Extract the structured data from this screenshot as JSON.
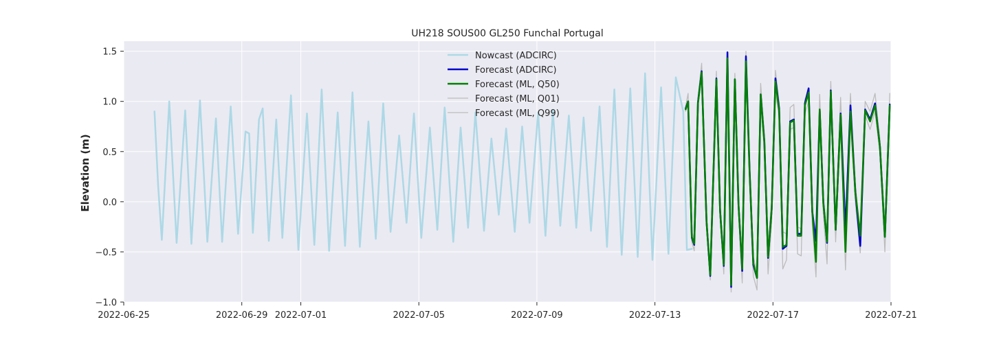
{
  "chart_data": {
    "type": "line",
    "title": "UH218 SOUS00 GL250 Funchal Portugal",
    "xlabel": "",
    "ylabel": "Elevation (m)",
    "xlim": [
      "2022-06-25T00:00",
      "2022-07-21T00:00"
    ],
    "ylim": [
      -1.0,
      1.6
    ],
    "grid": true,
    "legend_position": "top-center",
    "x_ticks": [
      "2022-06-25",
      "2022-06-29",
      "2022-07-01",
      "2022-07-05",
      "2022-07-09",
      "2022-07-13",
      "2022-07-17",
      "2022-07-21"
    ],
    "y_ticks": [
      -1.0,
      -0.5,
      0.0,
      0.5,
      1.0,
      1.5
    ],
    "y_tick_labels": [
      "−1.0",
      "−0.5",
      "0.0",
      "0.5",
      "1.0",
      "1.5"
    ],
    "series": [
      {
        "name": "Nowcast (ADCIRC)",
        "color": "#add8e6",
        "x": [
          "2022-06-26T01:00",
          "2022-06-26T04:00",
          "2022-06-26T07:00",
          "2022-06-26T13:00",
          "2022-06-26T19:00",
          "2022-06-27T02:00",
          "2022-06-27T07:00",
          "2022-06-27T14:00",
          "2022-06-27T20:00",
          "2022-06-28T03:00",
          "2022-06-28T08:00",
          "2022-06-28T15:00",
          "2022-06-28T21:00",
          "2022-06-29T03:00",
          "2022-06-29T06:00",
          "2022-06-29T09:00",
          "2022-06-29T14:00",
          "2022-06-29T17:00",
          "2022-06-29T22:00",
          "2022-06-30T04:00",
          "2022-06-30T09:00",
          "2022-06-30T16:00",
          "2022-06-30T22:00",
          "2022-07-01T05:00",
          "2022-07-01T11:00",
          "2022-07-01T17:00",
          "2022-07-01T23:00",
          "2022-07-02T06:00",
          "2022-07-02T12:00",
          "2022-07-02T18:00",
          "2022-07-03T00:00",
          "2022-07-03T07:00",
          "2022-07-03T13:00",
          "2022-07-03T19:00",
          "2022-07-04T01:00",
          "2022-07-04T08:00",
          "2022-07-04T14:00",
          "2022-07-04T20:00",
          "2022-07-05T02:00",
          "2022-07-05T09:00",
          "2022-07-05T15:00",
          "2022-07-05T21:00",
          "2022-07-06T04:00",
          "2022-07-06T10:00",
          "2022-07-06T16:00",
          "2022-07-06T22:00",
          "2022-07-07T05:00",
          "2022-07-07T11:00",
          "2022-07-07T17:00",
          "2022-07-07T23:00",
          "2022-07-08T06:00",
          "2022-07-08T12:00",
          "2022-07-08T18:00",
          "2022-07-09T01:00",
          "2022-07-09T07:00",
          "2022-07-09T13:00",
          "2022-07-09T19:00",
          "2022-07-10T02:00",
          "2022-07-10T08:00",
          "2022-07-10T14:00",
          "2022-07-10T20:00",
          "2022-07-11T03:00",
          "2022-07-11T09:00",
          "2022-07-11T15:00",
          "2022-07-11T21:00",
          "2022-07-12T04:00",
          "2022-07-12T10:00",
          "2022-07-12T16:00",
          "2022-07-12T22:00",
          "2022-07-13T05:00",
          "2022-07-13T11:00",
          "2022-07-13T17:00",
          "2022-07-13T23:00",
          "2022-07-14T02:00",
          "2022-07-14T06:00"
        ],
        "values": [
          0.9,
          0.15,
          -0.38,
          1.0,
          -0.41,
          0.91,
          -0.42,
          1.01,
          -0.4,
          0.83,
          -0.4,
          0.95,
          -0.32,
          0.7,
          0.68,
          -0.31,
          0.82,
          0.93,
          -0.39,
          0.82,
          -0.36,
          1.06,
          -0.48,
          0.88,
          -0.43,
          1.12,
          -0.49,
          0.89,
          -0.44,
          1.09,
          -0.45,
          0.8,
          -0.37,
          0.98,
          -0.3,
          0.66,
          -0.21,
          0.88,
          -0.36,
          0.74,
          -0.28,
          0.94,
          -0.4,
          0.74,
          -0.26,
          0.89,
          -0.29,
          0.63,
          -0.13,
          0.73,
          -0.3,
          0.75,
          -0.21,
          0.89,
          -0.34,
          0.91,
          -0.24,
          0.86,
          -0.26,
          0.84,
          -0.29,
          0.95,
          -0.45,
          1.12,
          -0.53,
          1.13,
          -0.55,
          1.28,
          -0.58,
          1.14,
          -0.52,
          1.24,
          0.9,
          -0.48,
          -0.47
        ]
      },
      {
        "name": "Forecast (ADCIRC)",
        "color": "#0000cd",
        "x": [
          "2022-07-14T01:00",
          "2022-07-14T03:00",
          "2022-07-14T06:00",
          "2022-07-14T08:00",
          "2022-07-14T11:00",
          "2022-07-14T14:00",
          "2022-07-14T18:00",
          "2022-07-14T21:00",
          "2022-07-15T02:00",
          "2022-07-15T05:00",
          "2022-07-15T08:00",
          "2022-07-15T11:00",
          "2022-07-15T14:00",
          "2022-07-15T17:00",
          "2022-07-15T20:00",
          "2022-07-15T23:00",
          "2022-07-16T02:00",
          "2022-07-16T05:00",
          "2022-07-16T08:00",
          "2022-07-16T11:00",
          "2022-07-16T14:00",
          "2022-07-16T17:00",
          "2022-07-16T20:00",
          "2022-07-16T23:00",
          "2022-07-17T02:00",
          "2022-07-17T05:00",
          "2022-07-17T08:00",
          "2022-07-17T11:00",
          "2022-07-17T14:00",
          "2022-07-17T17:00",
          "2022-07-17T20:00",
          "2022-07-17T23:00",
          "2022-07-18T02:00",
          "2022-07-18T05:00",
          "2022-07-18T08:00",
          "2022-07-18T11:00",
          "2022-07-18T14:00",
          "2022-07-18T17:00",
          "2022-07-18T20:00",
          "2022-07-18T23:00",
          "2022-07-19T03:00",
          "2022-07-19T07:00",
          "2022-07-19T11:00",
          "2022-07-19T15:00",
          "2022-07-19T19:00",
          "2022-07-19T23:00",
          "2022-07-20T03:00",
          "2022-07-20T07:00",
          "2022-07-20T11:00",
          "2022-07-20T15:00",
          "2022-07-20T19:00",
          "2022-07-20T23:00"
        ],
        "values": [
          0.93,
          1.0,
          -0.36,
          -0.43,
          0.99,
          1.3,
          -0.2,
          -0.74,
          1.23,
          -0.09,
          -0.64,
          1.49,
          -0.85,
          1.22,
          -0.03,
          -0.69,
          1.45,
          0.32,
          -0.63,
          -0.76,
          1.07,
          0.6,
          -0.56,
          -0.07,
          1.23,
          0.93,
          -0.47,
          -0.44,
          0.8,
          0.82,
          -0.32,
          -0.32,
          0.98,
          1.13,
          -0.1,
          -0.39,
          0.91,
          -0.01,
          -0.41,
          1.11,
          -0.28,
          0.88,
          -0.29,
          0.96,
          0.1,
          -0.44,
          0.92,
          0.82,
          0.98,
          0.55,
          -0.35,
          0.97
        ]
      },
      {
        "name": "Forecast (ML, Q50)",
        "color": "#008000",
        "x": [
          "2022-07-14T01:00",
          "2022-07-14T03:00",
          "2022-07-14T06:00",
          "2022-07-14T08:00",
          "2022-07-14T11:00",
          "2022-07-14T14:00",
          "2022-07-14T18:00",
          "2022-07-14T21:00",
          "2022-07-15T02:00",
          "2022-07-15T05:00",
          "2022-07-15T08:00",
          "2022-07-15T11:00",
          "2022-07-15T14:00",
          "2022-07-15T17:00",
          "2022-07-15T20:00",
          "2022-07-15T23:00",
          "2022-07-16T02:00",
          "2022-07-16T05:00",
          "2022-07-16T08:00",
          "2022-07-16T11:00",
          "2022-07-16T14:00",
          "2022-07-16T17:00",
          "2022-07-16T20:00",
          "2022-07-16T23:00",
          "2022-07-17T02:00",
          "2022-07-17T05:00",
          "2022-07-17T08:00",
          "2022-07-17T11:00",
          "2022-07-17T14:00",
          "2022-07-17T17:00",
          "2022-07-17T20:00",
          "2022-07-17T23:00",
          "2022-07-18T02:00",
          "2022-07-18T05:00",
          "2022-07-18T08:00",
          "2022-07-18T11:00",
          "2022-07-18T14:00",
          "2022-07-18T17:00",
          "2022-07-18T20:00",
          "2022-07-18T23:00",
          "2022-07-19T03:00",
          "2022-07-19T07:00",
          "2022-07-19T11:00",
          "2022-07-19T15:00",
          "2022-07-19T19:00",
          "2022-07-19T23:00",
          "2022-07-20T03:00",
          "2022-07-20T07:00",
          "2022-07-20T11:00",
          "2022-07-20T15:00",
          "2022-07-20T19:00",
          "2022-07-20T23:00"
        ],
        "values": [
          0.92,
          1.0,
          -0.35,
          -0.42,
          0.98,
          1.29,
          -0.2,
          -0.73,
          1.22,
          -0.09,
          -0.63,
          1.43,
          -0.83,
          1.22,
          -0.03,
          -0.67,
          1.4,
          0.3,
          -0.61,
          -0.76,
          1.07,
          0.59,
          -0.55,
          -0.07,
          1.2,
          0.91,
          -0.45,
          -0.43,
          0.79,
          0.81,
          -0.34,
          -0.34,
          0.96,
          1.09,
          -0.1,
          -0.6,
          0.92,
          -0.02,
          -0.4,
          1.1,
          -0.28,
          0.87,
          -0.5,
          0.9,
          0.1,
          -0.34,
          0.91,
          0.8,
          0.96,
          0.55,
          -0.35,
          0.96
        ]
      },
      {
        "name": "Forecast (ML, Q01)",
        "color": "#bcbcbc",
        "x": [
          "2022-07-14T01:00",
          "2022-07-14T03:00",
          "2022-07-14T06:00",
          "2022-07-14T08:00",
          "2022-07-14T11:00",
          "2022-07-14T14:00",
          "2022-07-14T18:00",
          "2022-07-14T21:00",
          "2022-07-15T02:00",
          "2022-07-15T05:00",
          "2022-07-15T08:00",
          "2022-07-15T11:00",
          "2022-07-15T14:00",
          "2022-07-15T17:00",
          "2022-07-15T20:00",
          "2022-07-15T23:00",
          "2022-07-16T02:00",
          "2022-07-16T05:00",
          "2022-07-16T08:00",
          "2022-07-16T11:00",
          "2022-07-16T14:00",
          "2022-07-16T17:00",
          "2022-07-16T20:00",
          "2022-07-16T23:00",
          "2022-07-17T02:00",
          "2022-07-17T05:00",
          "2022-07-17T08:00",
          "2022-07-17T11:00",
          "2022-07-17T14:00",
          "2022-07-17T17:00",
          "2022-07-17T20:00",
          "2022-07-17T23:00",
          "2022-07-18T02:00",
          "2022-07-18T05:00",
          "2022-07-18T08:00",
          "2022-07-18T11:00",
          "2022-07-18T14:00",
          "2022-07-18T17:00",
          "2022-07-18T20:00",
          "2022-07-18T23:00",
          "2022-07-19T03:00",
          "2022-07-19T07:00",
          "2022-07-19T11:00",
          "2022-07-19T15:00",
          "2022-07-19T19:00",
          "2022-07-19T23:00",
          "2022-07-20T03:00",
          "2022-07-20T07:00",
          "2022-07-20T11:00",
          "2022-07-20T15:00",
          "2022-07-20T19:00",
          "2022-07-20T23:00"
        ],
        "values": [
          0.9,
          0.98,
          -0.4,
          -0.49,
          0.95,
          1.25,
          -0.26,
          -0.78,
          1.18,
          -0.15,
          -0.72,
          1.36,
          -0.9,
          1.16,
          -0.1,
          -0.81,
          1.35,
          0.22,
          -0.74,
          -0.88,
          1.0,
          0.5,
          -0.72,
          -0.18,
          1.1,
          0.85,
          -0.67,
          -0.58,
          0.72,
          0.74,
          -0.52,
          -0.54,
          0.88,
          1.0,
          -0.22,
          -0.75,
          0.85,
          -0.12,
          -0.62,
          1.02,
          -0.4,
          0.8,
          -0.68,
          0.84,
          0.0,
          -0.51,
          0.86,
          0.72,
          0.9,
          0.48,
          -0.5,
          0.9
        ]
      },
      {
        "name": "Forecast (ML, Q99)",
        "color": "#bcbcbc",
        "x": [
          "2022-07-14T01:00",
          "2022-07-14T03:00",
          "2022-07-14T06:00",
          "2022-07-14T08:00",
          "2022-07-14T11:00",
          "2022-07-14T14:00",
          "2022-07-14T18:00",
          "2022-07-14T21:00",
          "2022-07-15T02:00",
          "2022-07-15T05:00",
          "2022-07-15T08:00",
          "2022-07-15T11:00",
          "2022-07-15T14:00",
          "2022-07-15T17:00",
          "2022-07-15T20:00",
          "2022-07-15T23:00",
          "2022-07-16T02:00",
          "2022-07-16T05:00",
          "2022-07-16T08:00",
          "2022-07-16T11:00",
          "2022-07-16T14:00",
          "2022-07-16T17:00",
          "2022-07-16T20:00",
          "2022-07-16T23:00",
          "2022-07-17T02:00",
          "2022-07-17T05:00",
          "2022-07-17T08:00",
          "2022-07-17T11:00",
          "2022-07-17T14:00",
          "2022-07-17T17:00",
          "2022-07-17T20:00",
          "2022-07-17T23:00",
          "2022-07-18T02:00",
          "2022-07-18T05:00",
          "2022-07-18T08:00",
          "2022-07-18T11:00",
          "2022-07-18T14:00",
          "2022-07-18T17:00",
          "2022-07-18T20:00",
          "2022-07-18T23:00",
          "2022-07-19T03:00",
          "2022-07-19T07:00",
          "2022-07-19T11:00",
          "2022-07-19T15:00",
          "2022-07-19T19:00",
          "2022-07-19T23:00",
          "2022-07-20T03:00",
          "2022-07-20T07:00",
          "2022-07-20T11:00",
          "2022-07-20T15:00",
          "2022-07-20T19:00",
          "2022-07-20T23:00"
        ],
        "values": [
          0.95,
          1.08,
          -0.3,
          -0.38,
          1.03,
          1.38,
          -0.14,
          -0.68,
          1.3,
          -0.02,
          -0.56,
          1.48,
          -0.76,
          1.28,
          0.04,
          -0.6,
          1.5,
          0.38,
          -0.55,
          -0.7,
          1.18,
          0.68,
          -0.44,
          0.02,
          1.31,
          0.98,
          -0.3,
          -0.32,
          0.94,
          0.97,
          -0.25,
          -0.27,
          1.02,
          1.1,
          -0.05,
          -0.43,
          1.07,
          0.05,
          -0.32,
          1.2,
          -0.22,
          1.04,
          -0.2,
          1.08,
          0.18,
          -0.36,
          1.0,
          0.9,
          1.08,
          0.62,
          -0.3,
          1.08
        ]
      }
    ]
  }
}
